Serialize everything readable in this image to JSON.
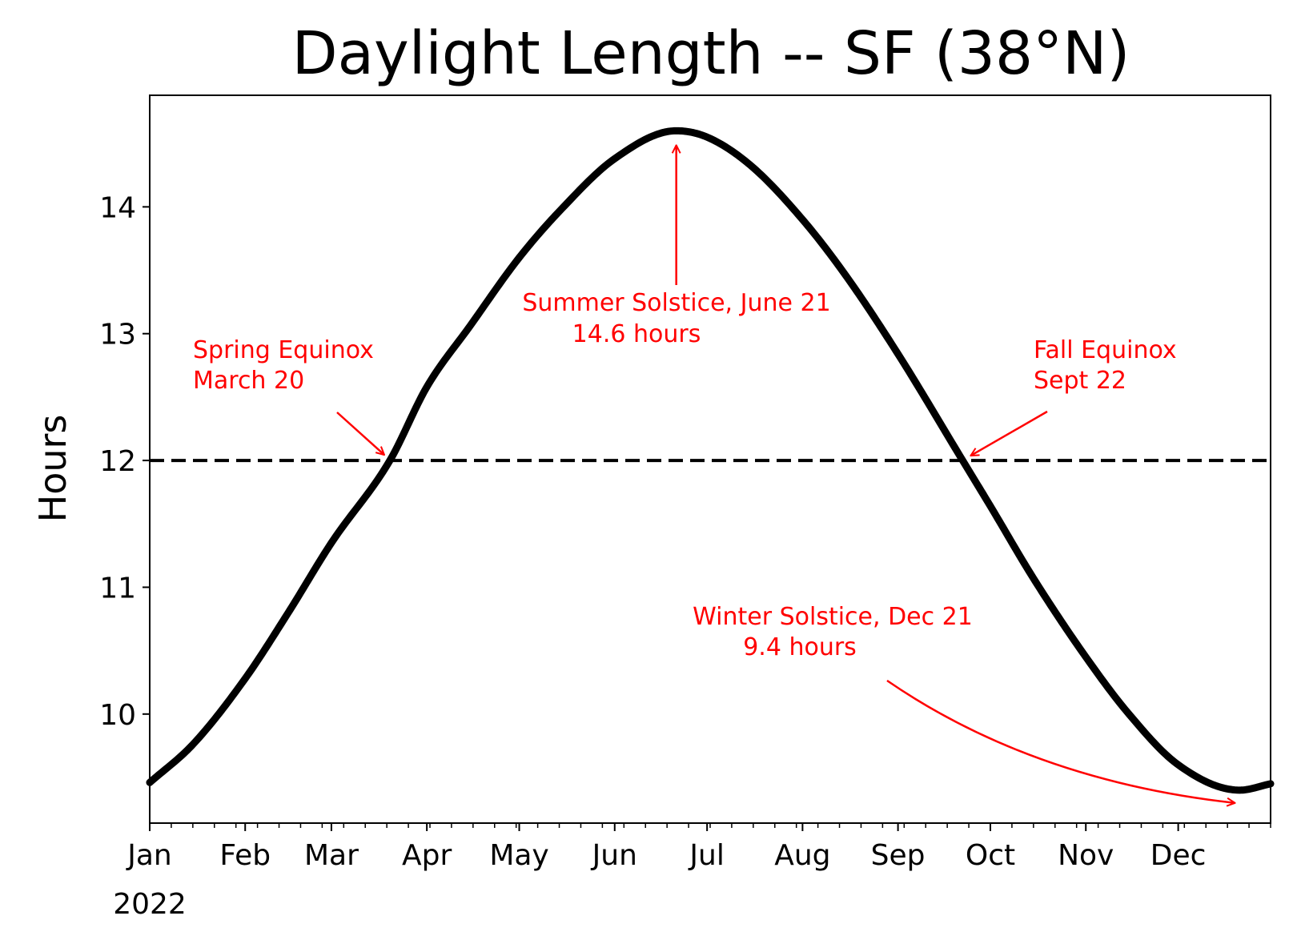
{
  "chart_data": {
    "type": "line",
    "title": "Daylight Length -- SF (38°N)",
    "xlabel": "",
    "ylabel": "Hours",
    "x_year_label": "2022",
    "x_range": [
      "2022-01-01",
      "2022-12-31"
    ],
    "ylim": [
      9.14,
      14.88
    ],
    "y_ticks": [
      10,
      11,
      12,
      13,
      14
    ],
    "x_tick_labels": [
      "Jan",
      "Feb",
      "Mar",
      "Apr",
      "May",
      "Jun",
      "Jul",
      "Aug",
      "Sep",
      "Oct",
      "Nov",
      "Dec"
    ],
    "x_tick_dates": [
      "2022-01-01",
      "2022-02-01",
      "2022-03-01",
      "2022-04-01",
      "2022-05-01",
      "2022-06-01",
      "2022-07-01",
      "2022-08-01",
      "2022-09-01",
      "2022-10-01",
      "2022-11-01",
      "2022-12-01"
    ],
    "grid": false,
    "series": [
      {
        "color": "#000000",
        "x": [
          "2022-01-01",
          "2022-01-15",
          "2022-02-01",
          "2022-02-15",
          "2022-03-01",
          "2022-03-20",
          "2022-04-01",
          "2022-04-15",
          "2022-05-01",
          "2022-05-15",
          "2022-06-01",
          "2022-06-21",
          "2022-07-01",
          "2022-07-15",
          "2022-08-01",
          "2022-08-15",
          "2022-09-01",
          "2022-09-22",
          "2022-10-01",
          "2022-10-15",
          "2022-11-01",
          "2022-11-15",
          "2022-12-01",
          "2022-12-21",
          "2022-12-31"
        ],
        "y": [
          9.46,
          9.76,
          10.28,
          10.8,
          11.35,
          12.0,
          12.58,
          13.06,
          13.6,
          13.99,
          14.38,
          14.6,
          14.55,
          14.33,
          13.9,
          13.46,
          12.84,
          12.0,
          11.64,
          11.07,
          10.45,
          10.0,
          9.6,
          9.4,
          9.45
        ]
      }
    ],
    "reference_lines": [
      {
        "y": 12,
        "style": "dashed",
        "color": "#000000"
      }
    ],
    "annotations": [
      {
        "lines": [
          "Summer Solstice, June 21",
          "14.6 hours"
        ],
        "color": "#ff0000",
        "point": {
          "x": "2022-06-21",
          "y": 14.6
        }
      },
      {
        "lines": [
          "Spring Equinox",
          "March 20"
        ],
        "color": "#ff0000",
        "point": {
          "x": "2022-03-20",
          "y": 12.0
        }
      },
      {
        "lines": [
          "Fall Equinox",
          "Sept 22"
        ],
        "color": "#ff0000",
        "point": {
          "x": "2022-09-22",
          "y": 12.0
        }
      },
      {
        "lines": [
          "Winter Solstice, Dec 21",
          "9.4 hours"
        ],
        "color": "#ff0000",
        "point": {
          "x": "2022-12-21",
          "y": 9.4
        }
      }
    ]
  }
}
